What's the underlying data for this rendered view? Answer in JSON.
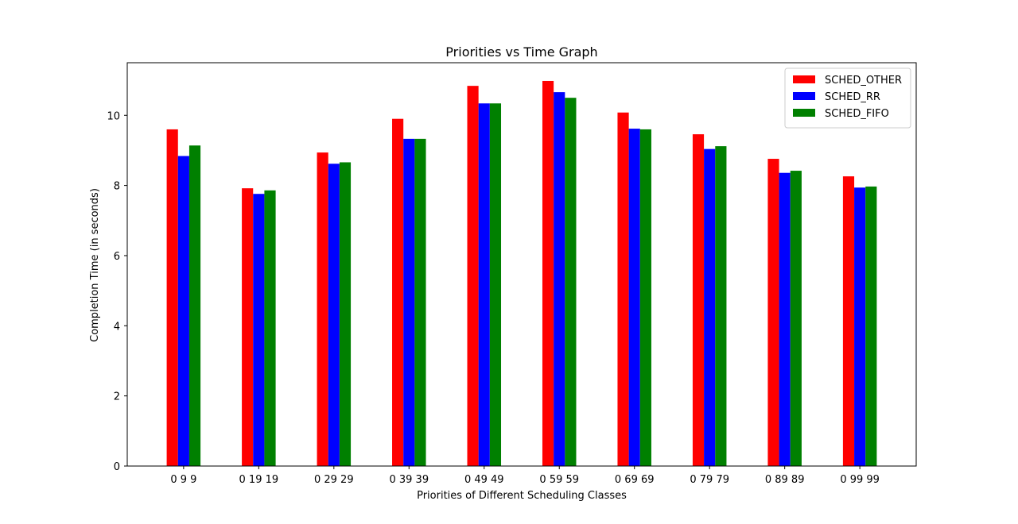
{
  "chart_data": {
    "type": "bar",
    "title": "Priorities vs Time Graph",
    "xlabel": "Priorities of Different Scheduling Classes",
    "ylabel": "Completion Time (in seconds)",
    "categories": [
      "0 9 9",
      "0 19 19",
      "0 29 29",
      "0 39 39",
      "0 49 49",
      "0 59 59",
      "0 69 69",
      "0 79 79",
      "0 89 89",
      "0 99 99"
    ],
    "series": [
      {
        "name": "SCHED_OTHER",
        "color": "#ff0000",
        "values": [
          9.6,
          7.92,
          8.94,
          9.9,
          10.84,
          10.98,
          10.08,
          9.46,
          8.76,
          8.26
        ]
      },
      {
        "name": "SCHED_RR",
        "color": "#0000ff",
        "values": [
          8.84,
          7.76,
          8.62,
          9.33,
          10.34,
          10.66,
          9.62,
          9.04,
          8.36,
          7.94
        ]
      },
      {
        "name": "SCHED_FIFO",
        "color": "#008000",
        "values": [
          9.14,
          7.86,
          8.66,
          9.33,
          10.34,
          10.5,
          9.6,
          9.12,
          8.42,
          7.97
        ]
      }
    ],
    "ylim": [
      0,
      11.5
    ],
    "yticks": [
      "0",
      "2",
      "4",
      "6",
      "8",
      "10"
    ],
    "legend_position": "top-right",
    "grid": false
  }
}
